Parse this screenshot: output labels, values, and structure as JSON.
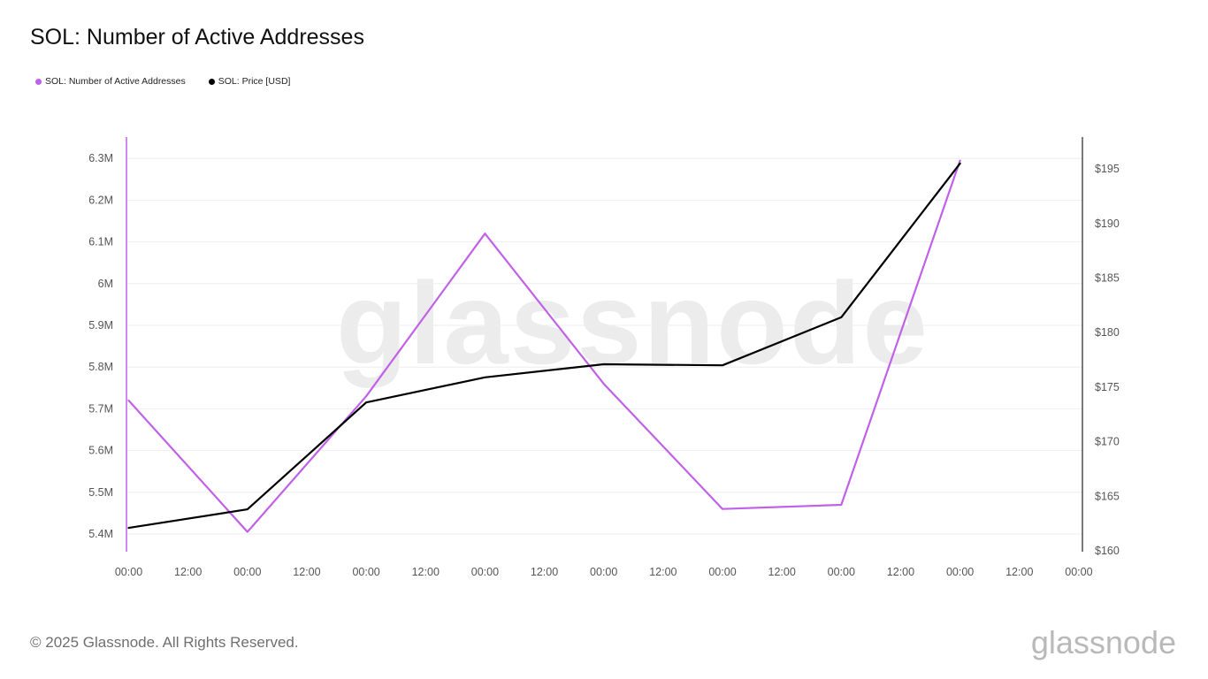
{
  "chart_data": {
    "type": "line",
    "title": "SOL: Number of Active Addresses",
    "legend_placement": "top-left",
    "grid": true,
    "x_tick_labels": [
      "00:00",
      "12:00",
      "00:00",
      "12:00",
      "00:00",
      "12:00",
      "00:00",
      "12:00",
      "00:00",
      "12:00",
      "00:00",
      "12:00",
      "00:00",
      "12:00",
      "00:00",
      "12:00",
      "00:00"
    ],
    "x": [
      0,
      1,
      2,
      3,
      4,
      5,
      6,
      7
    ],
    "left_axis": {
      "ticks": [
        5.4,
        5.5,
        5.6,
        5.7,
        5.8,
        5.9,
        6.0,
        6.1,
        6.2,
        6.3
      ],
      "tick_labels": [
        "5.4M",
        "5.5M",
        "5.6M",
        "5.7M",
        "5.8M",
        "5.9M",
        "6M",
        "6.1M",
        "6.2M",
        "6.3M"
      ],
      "range": [
        5.357,
        6.35
      ]
    },
    "right_axis": {
      "ticks": [
        160,
        165,
        170,
        175,
        180,
        185,
        190,
        195
      ],
      "tick_labels": [
        "$160",
        "$165",
        "$170",
        "$175",
        "$180",
        "$185",
        "$190",
        "$195"
      ],
      "range": [
        160,
        198
      ]
    },
    "series": [
      {
        "name": "SOL: Number of Active Addresses",
        "axis": "left",
        "color": "#c061e8",
        "values": [
          5.72,
          5.405,
          5.73,
          6.12,
          5.76,
          5.46,
          5.47,
          6.295
        ]
      },
      {
        "name": "SOL: Price [USD]",
        "axis": "right",
        "color": "#000000",
        "values": [
          162.1,
          163.8,
          173.6,
          175.9,
          177.1,
          177.0,
          181.4,
          195.5
        ]
      }
    ]
  },
  "watermark": "glassnode",
  "footer": {
    "copyright": "© 2025 Glassnode. All Rights Reserved.",
    "logo": "glassnode"
  }
}
